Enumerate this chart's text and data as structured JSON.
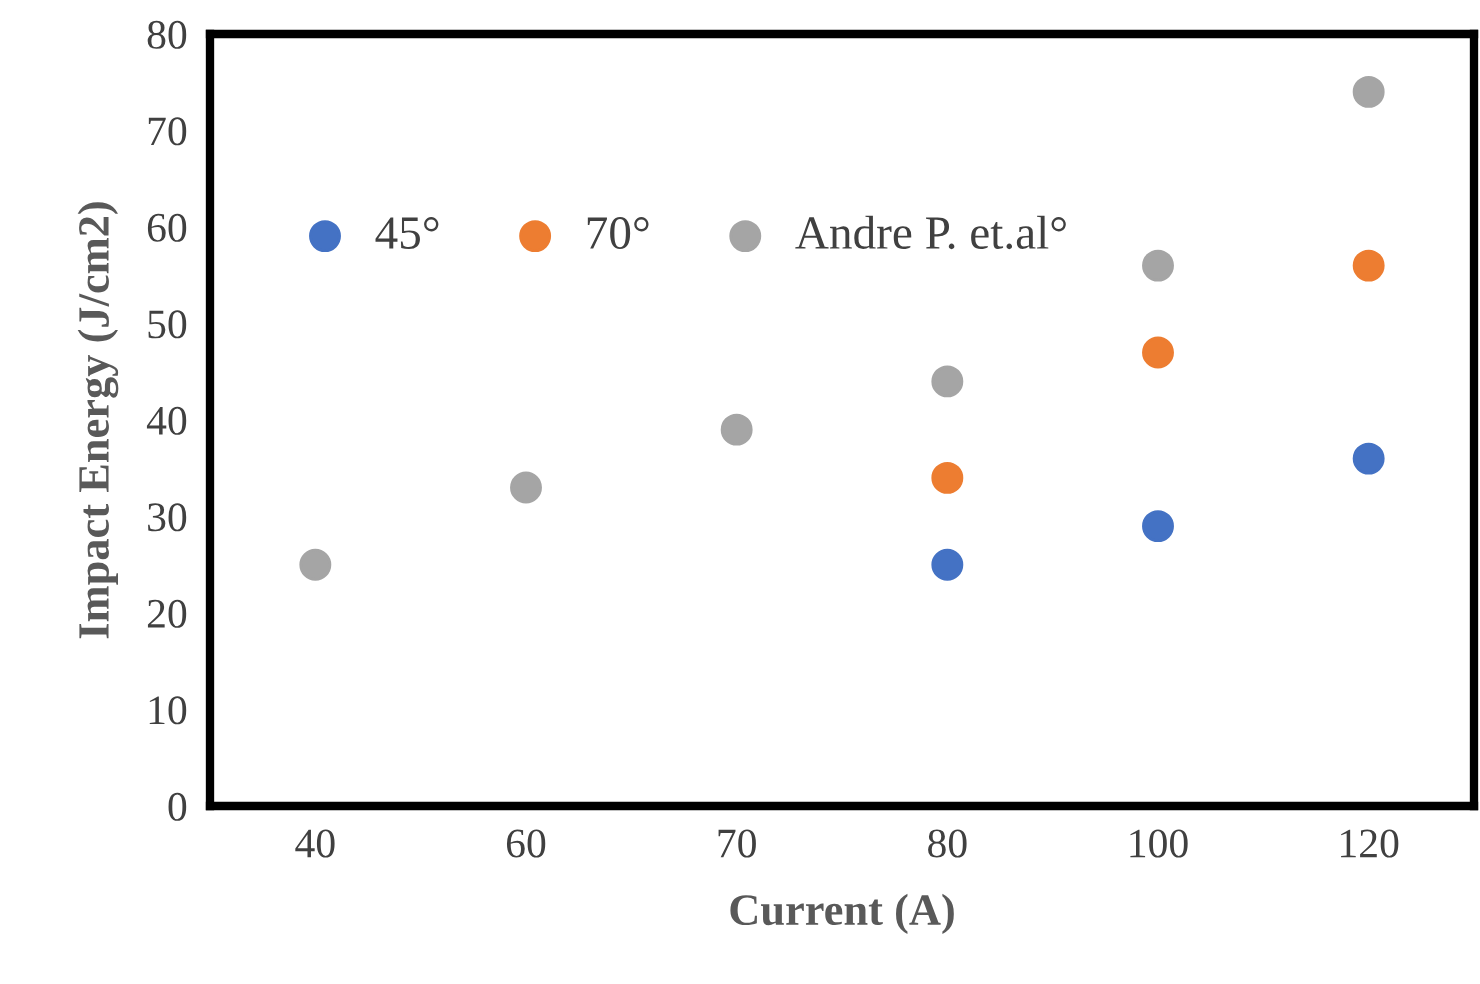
{
  "chart_data": {
    "type": "scatter",
    "xlabel": "Current (A)",
    "ylabel": "Impact Energy (J/cm2)",
    "categories": [
      "40",
      "60",
      "70",
      "80",
      "100",
      "120"
    ],
    "series": [
      {
        "name": "45°",
        "color": "#4472c4",
        "x": [
          "80",
          "100",
          "120"
        ],
        "values": [
          25,
          29,
          36
        ]
      },
      {
        "name": "70°",
        "color": "#ed7d31",
        "x": [
          "80",
          "100",
          "120"
        ],
        "values": [
          34,
          47,
          56
        ]
      },
      {
        "name": "Andre P. et.al°",
        "color": "#a5a5a5",
        "x": [
          "40",
          "60",
          "70",
          "80",
          "100",
          "120"
        ],
        "values": [
          25,
          33,
          39,
          44,
          56,
          74
        ]
      }
    ],
    "ylim": [
      0,
      80
    ],
    "yticks": [
      0,
      10,
      20,
      30,
      40,
      50,
      60,
      70,
      80
    ],
    "marker": "circle",
    "grid": false,
    "legend": "top left"
  }
}
